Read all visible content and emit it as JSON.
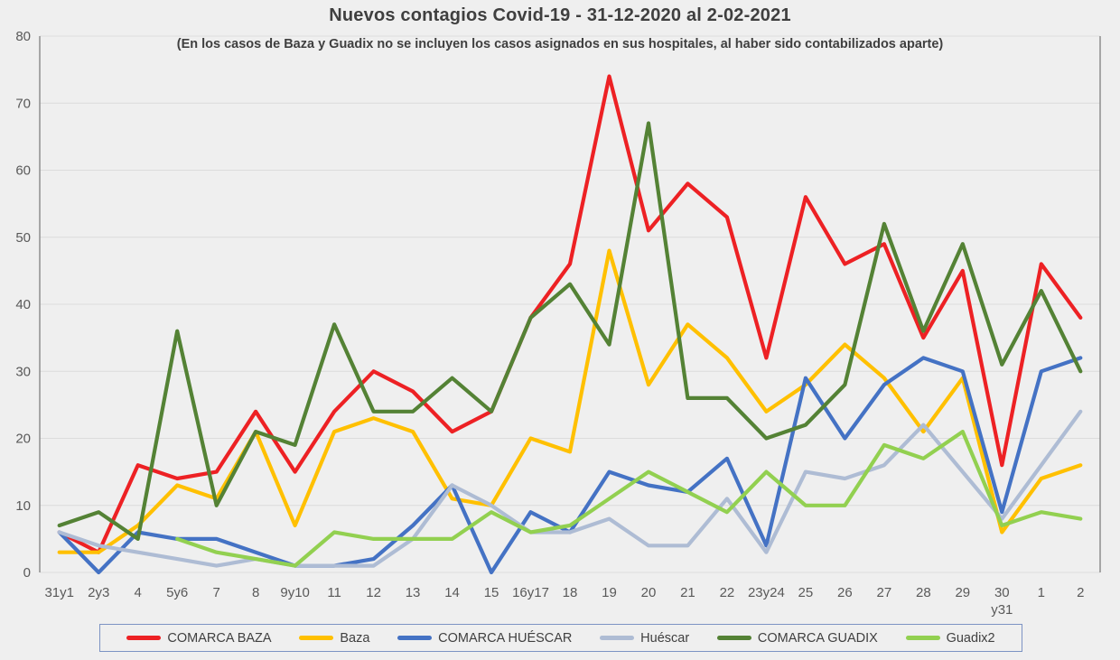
{
  "title": "Nuevos contagios Covid-19 - 31-12-2020 al 2-02-2021",
  "subtitle": "(En los casos de Baza y Guadix no se incluyen los casos asignados en sus hospitales, al haber sido contabilizados aparte)",
  "colors": {
    "page_bg": "#efefef",
    "gridline": "#dcdcdc",
    "axis_border": "#7f7f7f",
    "tick_text": "#595959",
    "title_text": "#3f3f3f",
    "legend_border": "#7c93c3"
  },
  "chart_data": {
    "type": "line",
    "title": "Nuevos contagios Covid-19 - 31-12-2020 al 2-02-2021",
    "subtitle": "(En los casos de Baza y Guadix no se incluyen los casos asignados en sus hospitales, al haber sido contabilizados aparte)",
    "ylim": [
      0,
      80
    ],
    "ytick_step": 10,
    "grid": true,
    "legend_position": "bottom",
    "categories": [
      "31y1",
      "2y3",
      "4",
      "5y6",
      "7",
      "8",
      "9y10",
      "11",
      "12",
      "13",
      "14",
      "15",
      "16y17",
      "18",
      "19",
      "20",
      "21",
      "22",
      "23y24",
      "25",
      "26",
      "27",
      "28",
      "29",
      "30\ny31",
      "1",
      "2"
    ],
    "series": [
      {
        "name": "COMARCA BAZA",
        "color": "#ed2124",
        "values": [
          6,
          3,
          16,
          14,
          15,
          24,
          15,
          24,
          30,
          27,
          21,
          24,
          38,
          46,
          74,
          51,
          58,
          53,
          32,
          56,
          46,
          49,
          35,
          45,
          16,
          46,
          38
        ]
      },
      {
        "name": "Baza",
        "color": "#ffc000",
        "values": [
          3,
          3,
          7,
          13,
          11,
          21,
          7,
          21,
          23,
          21,
          11,
          10,
          20,
          18,
          48,
          28,
          37,
          32,
          24,
          28,
          34,
          29,
          21,
          29,
          6,
          14,
          16
        ]
      },
      {
        "name": "COMARCA HUÉSCAR",
        "color": "#4472c4",
        "values": [
          6,
          0,
          6,
          5,
          5,
          3,
          1,
          1,
          2,
          7,
          13,
          0,
          9,
          6,
          15,
          13,
          12,
          17,
          4,
          29,
          20,
          28,
          32,
          30,
          9,
          30,
          32
        ]
      },
      {
        "name": "Huéscar",
        "color": "#aebcd4",
        "values": [
          6,
          4,
          3,
          2,
          1,
          2,
          1,
          1,
          1,
          5,
          13,
          10,
          6,
          6,
          8,
          4,
          4,
          11,
          3,
          15,
          14,
          16,
          22,
          15,
          8,
          16,
          24
        ]
      },
      {
        "name": "COMARCA GUADIX",
        "color": "#548235",
        "values": [
          7,
          9,
          5,
          36,
          10,
          21,
          19,
          37,
          24,
          24,
          29,
          24,
          38,
          43,
          34,
          67,
          26,
          26,
          20,
          22,
          28,
          52,
          36,
          49,
          31,
          42,
          30
        ]
      },
      {
        "name": "Guadix2",
        "color": "#92d050",
        "values": [
          null,
          null,
          null,
          5,
          3,
          2,
          1,
          6,
          5,
          5,
          5,
          9,
          6,
          7,
          11,
          15,
          12,
          9,
          15,
          10,
          10,
          19,
          17,
          21,
          7,
          9,
          8
        ]
      }
    ]
  }
}
